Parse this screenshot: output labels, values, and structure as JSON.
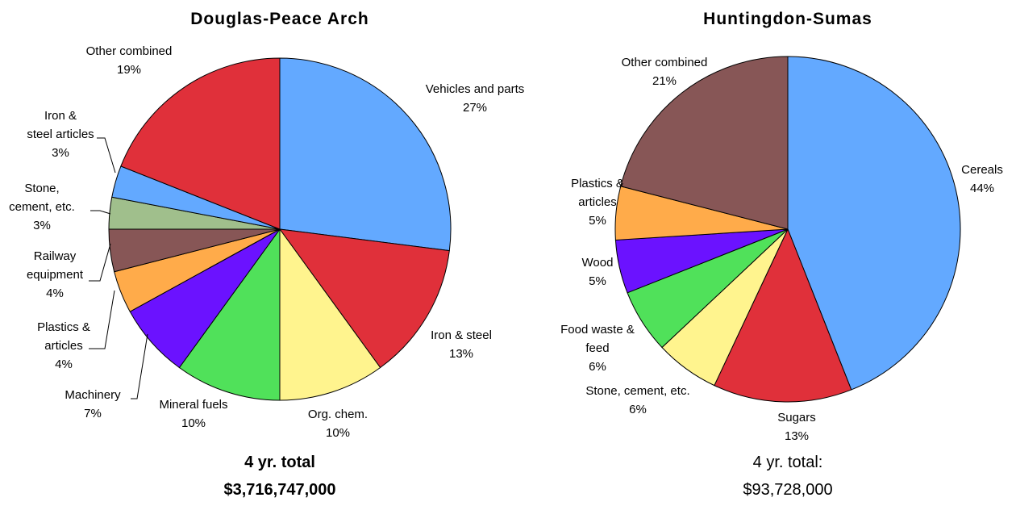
{
  "chart_data": [
    {
      "type": "pie",
      "title": "Douglas-Peace Arch",
      "categories": [
        "Vehicles and parts",
        "Iron & steel",
        "Org. chem.",
        "Mineral fuels",
        "Machinery",
        "Plastics &\narticles",
        "Railway\nequipment",
        "Stone,\ncement, etc.",
        "Iron &\nsteel articles",
        "Other combined"
      ],
      "values": [
        27,
        13,
        10,
        10,
        7,
        4,
        4,
        3,
        3,
        19
      ],
      "value_labels": [
        "27%",
        "13%",
        "10%",
        "10%",
        "7%",
        "4%",
        "4%",
        "3%",
        "3%",
        "19%"
      ],
      "colors": [
        "#63a9ff",
        "#e0303a",
        "#fff48e",
        "#50e15a",
        "#6b12ff",
        "#ffab4a",
        "#875656",
        "#a0bf8c",
        "#63a9ff",
        "#e0303a"
      ],
      "footer": [
        "4 yr. total",
        "$3,716,747,000"
      ],
      "footer_bold": true
    },
    {
      "type": "pie",
      "title": "Huntingdon-Sumas",
      "categories": [
        "Cereals",
        "Sugars",
        "Stone, cement, etc.",
        "Food waste &\nfeed",
        "Wood",
        "Plastics &\narticles",
        "Other combined"
      ],
      "values": [
        44,
        13,
        6,
        6,
        5,
        5,
        21
      ],
      "value_labels": [
        "44%",
        "13%",
        "6%",
        "6%",
        "5%",
        "5%",
        "21%"
      ],
      "colors": [
        "#63a9ff",
        "#e0303a",
        "#fff48e",
        "#50e15a",
        "#6b12ff",
        "#ffab4a",
        "#875656"
      ],
      "footer": [
        "4 yr. total:",
        "$93,728,000"
      ],
      "footer_bold": false
    }
  ]
}
